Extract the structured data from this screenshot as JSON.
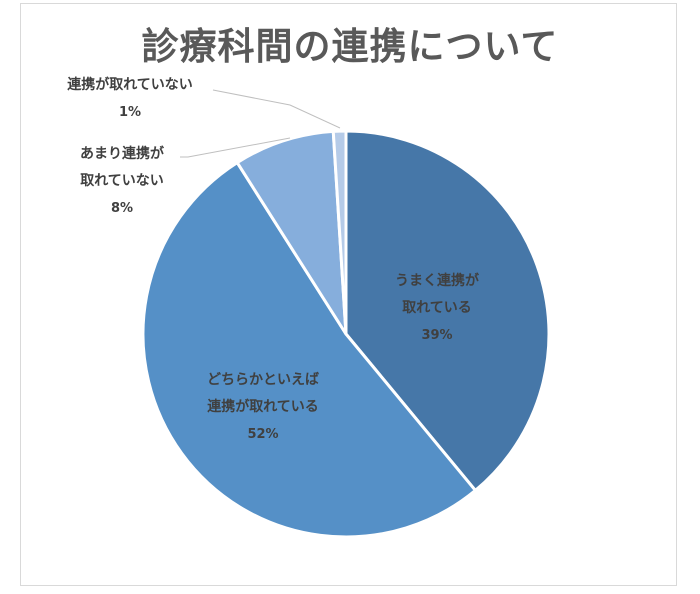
{
  "chart_data": {
    "type": "pie",
    "title": "診療科間の連携について",
    "categories": [
      "うまく連携が取れている",
      "どちらかといえば連携が取れている",
      "あまり連携が取れていない",
      "連携が取れていない"
    ],
    "values": [
      39,
      52,
      8,
      1
    ],
    "unit": "%",
    "colors": [
      "#4677a8",
      "#5590c7",
      "#86aedc",
      "#b5cbe8"
    ],
    "labels": [
      {
        "line1": "うまく連携が",
        "line2": "取れている",
        "pct": "39%"
      },
      {
        "line1": "どちらかといえば",
        "line2": "連携が取れている",
        "pct": "52%"
      },
      {
        "line1": "あまり連携が",
        "line2": "取れていない",
        "pct": "8%"
      },
      {
        "line1": "連携が取れていない",
        "line2": "",
        "pct": "1%"
      }
    ],
    "legend": "none",
    "start_angle": "12 o'clock, clockwise"
  }
}
